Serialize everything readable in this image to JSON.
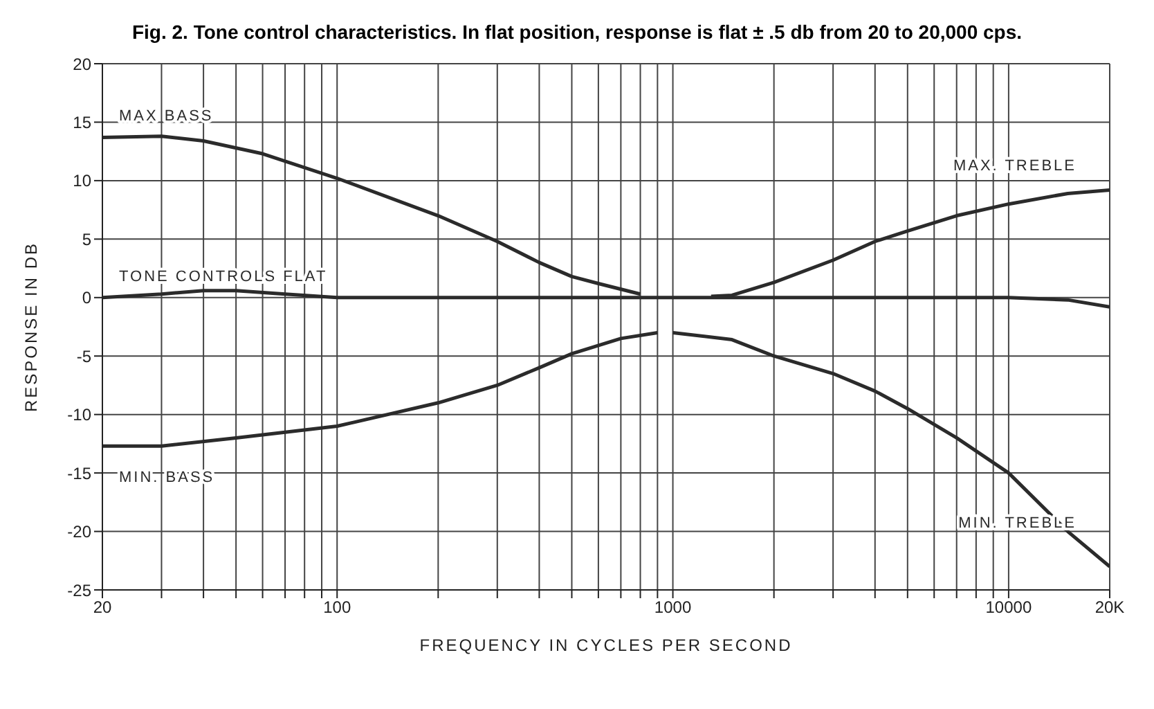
{
  "chart_data": {
    "type": "line",
    "title": "Fig. 2. Tone control characteristics. In flat position, response is flat ± .5 db from 20 to 20,000 cps.",
    "xlabel": "FREQUENCY IN CYCLES PER SECOND",
    "ylabel": "RESPONSE IN DB",
    "log": "x",
    "grid": true,
    "legend": false,
    "marker": "none",
    "line_style": "solid",
    "xlim": [
      20,
      20000
    ],
    "xticks": [
      20,
      {
        "value": 30,
        "label": null
      },
      {
        "value": 40,
        "label": null
      },
      {
        "value": 50,
        "label": null
      },
      {
        "value": 60,
        "label": null
      },
      {
        "value": 70,
        "label": null
      },
      {
        "value": 80,
        "label": null
      },
      {
        "value": 90,
        "label": null
      },
      100,
      {
        "value": 200,
        "label": null
      },
      {
        "value": 300,
        "label": null
      },
      {
        "value": 400,
        "label": null
      },
      {
        "value": 500,
        "label": null
      },
      {
        "value": 600,
        "label": null
      },
      {
        "value": 700,
        "label": null
      },
      {
        "value": 800,
        "label": null
      },
      {
        "value": 900,
        "label": null
      },
      1000,
      {
        "value": 2000,
        "label": null
      },
      {
        "value": 3000,
        "label": null
      },
      {
        "value": 4000,
        "label": null
      },
      {
        "value": 5000,
        "label": null
      },
      {
        "value": 6000,
        "label": null
      },
      {
        "value": 7000,
        "label": null
      },
      {
        "value": 8000,
        "label": null
      },
      {
        "value": 9000,
        "label": null
      },
      10000,
      {
        "value": 20000,
        "label": "20K"
      }
    ],
    "ylim": [
      -25,
      20
    ],
    "yticks": [
      -25,
      -20,
      -15,
      -10,
      -5,
      0,
      5,
      10,
      15,
      20
    ],
    "series": [
      {
        "name": "MAX BASS",
        "color": "#2b2b2b",
        "x": [
          20,
          30,
          40,
          60,
          100,
          200,
          300,
          400,
          500,
          600,
          800
        ],
        "values": [
          13.7,
          13.8,
          13.4,
          12.3,
          10.2,
          7,
          4.8,
          3,
          1.8,
          1.2,
          0.3
        ]
      },
      {
        "name": "TONE CONTROLS FLAT",
        "color": "#2b2b2b",
        "x": [
          20,
          30,
          40,
          50,
          70,
          100,
          1000,
          10000,
          15000,
          20000
        ],
        "values": [
          0,
          0.3,
          0.6,
          0.6,
          0.3,
          0,
          0,
          0,
          -0.2,
          -0.8
        ]
      },
      {
        "name": "MIN. BASS",
        "color": "#2b2b2b",
        "x": [
          20,
          30,
          50,
          100,
          200,
          300,
          400,
          500,
          700,
          900
        ],
        "values": [
          -12.7,
          -12.7,
          -12,
          -11,
          -9,
          -7.5,
          -6,
          -4.8,
          -3.5,
          -3
        ]
      },
      {
        "name": "MAX. TREBLE",
        "color": "#2b2b2b",
        "x": [
          1300,
          1500,
          2000,
          3000,
          4000,
          5000,
          7000,
          10000,
          15000,
          20000
        ],
        "values": [
          0.1,
          0.2,
          1.3,
          3.2,
          4.8,
          5.7,
          7,
          8,
          8.9,
          9.2
        ]
      },
      {
        "name": "MIN. TREBLE",
        "color": "#2b2b2b",
        "x": [
          1000,
          1500,
          2000,
          3000,
          4000,
          5000,
          7000,
          10000,
          15000,
          20000
        ],
        "values": [
          -3,
          -3.6,
          -5,
          -6.5,
          -8,
          -9.5,
          -12,
          -15,
          -20,
          -23
        ]
      }
    ]
  }
}
